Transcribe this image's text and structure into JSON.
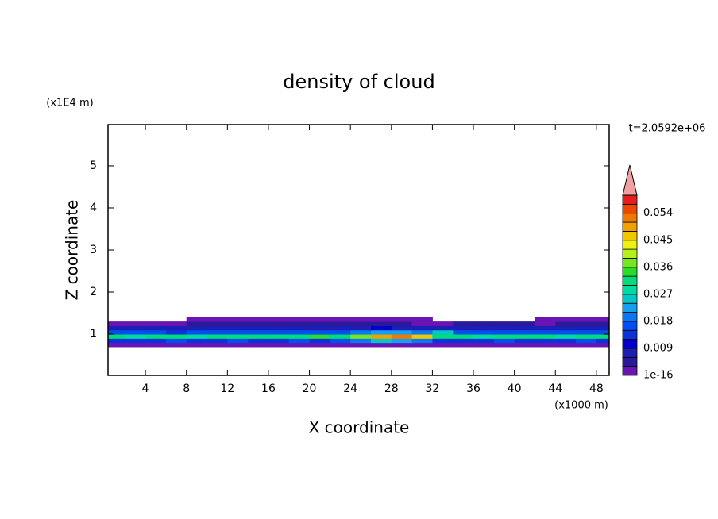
{
  "chart_data": {
    "type": "contour",
    "title": "density of cloud",
    "y_unit": "(x1E4 m)",
    "x_unit": "(x1000 m)",
    "time_label": "t=2.0592e+06",
    "xlabel": "X coordinate",
    "ylabel": "Z coordinate",
    "xlim": [
      0.35,
      49.25
    ],
    "ylim": [
      0.02,
      5.98
    ],
    "xticks": [
      4,
      8,
      12,
      16,
      20,
      24,
      28,
      32,
      36,
      40,
      44,
      48
    ],
    "yticks": [
      1,
      2,
      3,
      4,
      5
    ],
    "x": [
      1,
      3,
      5,
      7,
      9,
      11,
      13,
      15,
      17,
      19,
      21,
      23,
      25,
      27,
      29,
      31,
      33,
      35,
      37,
      39,
      41,
      43,
      45,
      47,
      49
    ],
    "y": [
      0.75,
      0.85,
      0.95,
      1.05,
      1.15,
      1.25,
      1.35
    ],
    "z": [
      [
        0.002,
        0.002,
        0.002,
        0.002,
        0.002,
        0.002,
        0.002,
        0.002,
        0.002,
        0.002,
        0.002,
        0.002,
        0.002,
        0.002,
        0.002,
        0.002,
        0.002,
        0.002,
        0.002,
        0.002,
        0.002,
        0.002,
        0.002,
        0.002,
        0.002
      ],
      [
        0.013,
        0.014,
        0.013,
        0.015,
        0.013,
        0.014,
        0.016,
        0.013,
        0.014,
        0.015,
        0.013,
        0.016,
        0.02,
        0.024,
        0.022,
        0.018,
        0.013,
        0.014,
        0.013,
        0.015,
        0.014,
        0.013,
        0.014,
        0.015,
        0.013
      ],
      [
        0.03,
        0.028,
        0.031,
        0.03,
        0.029,
        0.031,
        0.03,
        0.032,
        0.03,
        0.031,
        0.033,
        0.031,
        0.038,
        0.05,
        0.052,
        0.045,
        0.03,
        0.031,
        0.029,
        0.03,
        0.031,
        0.03,
        0.029,
        0.031,
        0.03
      ],
      [
        0.015,
        0.016,
        0.015,
        0.014,
        0.016,
        0.015,
        0.017,
        0.015,
        0.016,
        0.015,
        0.017,
        0.016,
        0.02,
        0.022,
        0.021,
        0.018,
        0.024,
        0.016,
        0.015,
        0.016,
        0.015,
        0.016,
        0.015,
        0.016,
        0.015
      ],
      [
        0.007,
        0.007,
        0.008,
        0.007,
        0.008,
        0.007,
        0.008,
        0.007,
        0.008,
        0.007,
        0.008,
        0.007,
        0.008,
        0.009,
        0.008,
        0.007,
        0.008,
        0.007,
        0.008,
        0.007,
        0.008,
        0.007,
        0.008,
        0.007,
        0.007
      ],
      [
        0.002,
        0.002,
        0.002,
        0.002,
        0.003,
        0.003,
        0.003,
        0.003,
        0.003,
        0.003,
        0.003,
        0.003,
        0.003,
        0.003,
        0.003,
        0.002,
        0.002,
        0.003,
        0.003,
        0.003,
        0.003,
        0.002,
        0.003,
        0.003,
        0.003
      ],
      [
        null,
        null,
        null,
        null,
        0.001,
        0.001,
        0.001,
        0.001,
        0.001,
        0.001,
        0.001,
        0.001,
        0.001,
        0.001,
        0.001,
        0.001,
        null,
        null,
        null,
        null,
        null,
        0.001,
        0.001,
        0.001,
        0.001
      ]
    ],
    "levels": [
      {
        "value": 1e-16,
        "label": "1e-16"
      },
      0.003,
      0.006,
      0.009,
      0.012,
      0.015,
      0.018,
      0.021,
      0.024,
      0.027,
      0.03,
      0.033,
      0.036,
      0.039,
      0.042,
      0.045,
      0.048,
      0.051,
      0.054,
      0.057,
      0.06
    ],
    "colorbar_ticks": [
      {
        "value": 1e-16,
        "label": "1e-16"
      },
      0.009,
      0.018,
      0.027,
      0.036,
      0.045,
      0.054
    ],
    "colors": [
      "#6a14b4",
      "#2a1a9a",
      "#1e1eb4",
      "#0000c8",
      "#0a32dc",
      "#0050f0",
      "#0a78f0",
      "#14a0f0",
      "#00c8c8",
      "#00dca0",
      "#00dc78",
      "#28dc28",
      "#78e61e",
      "#b4f01e",
      "#f0f014",
      "#f0c800",
      "#f0a000",
      "#f07800",
      "#f04600",
      "#e61e1e"
    ],
    "extend_color": "#f0a0a0"
  }
}
